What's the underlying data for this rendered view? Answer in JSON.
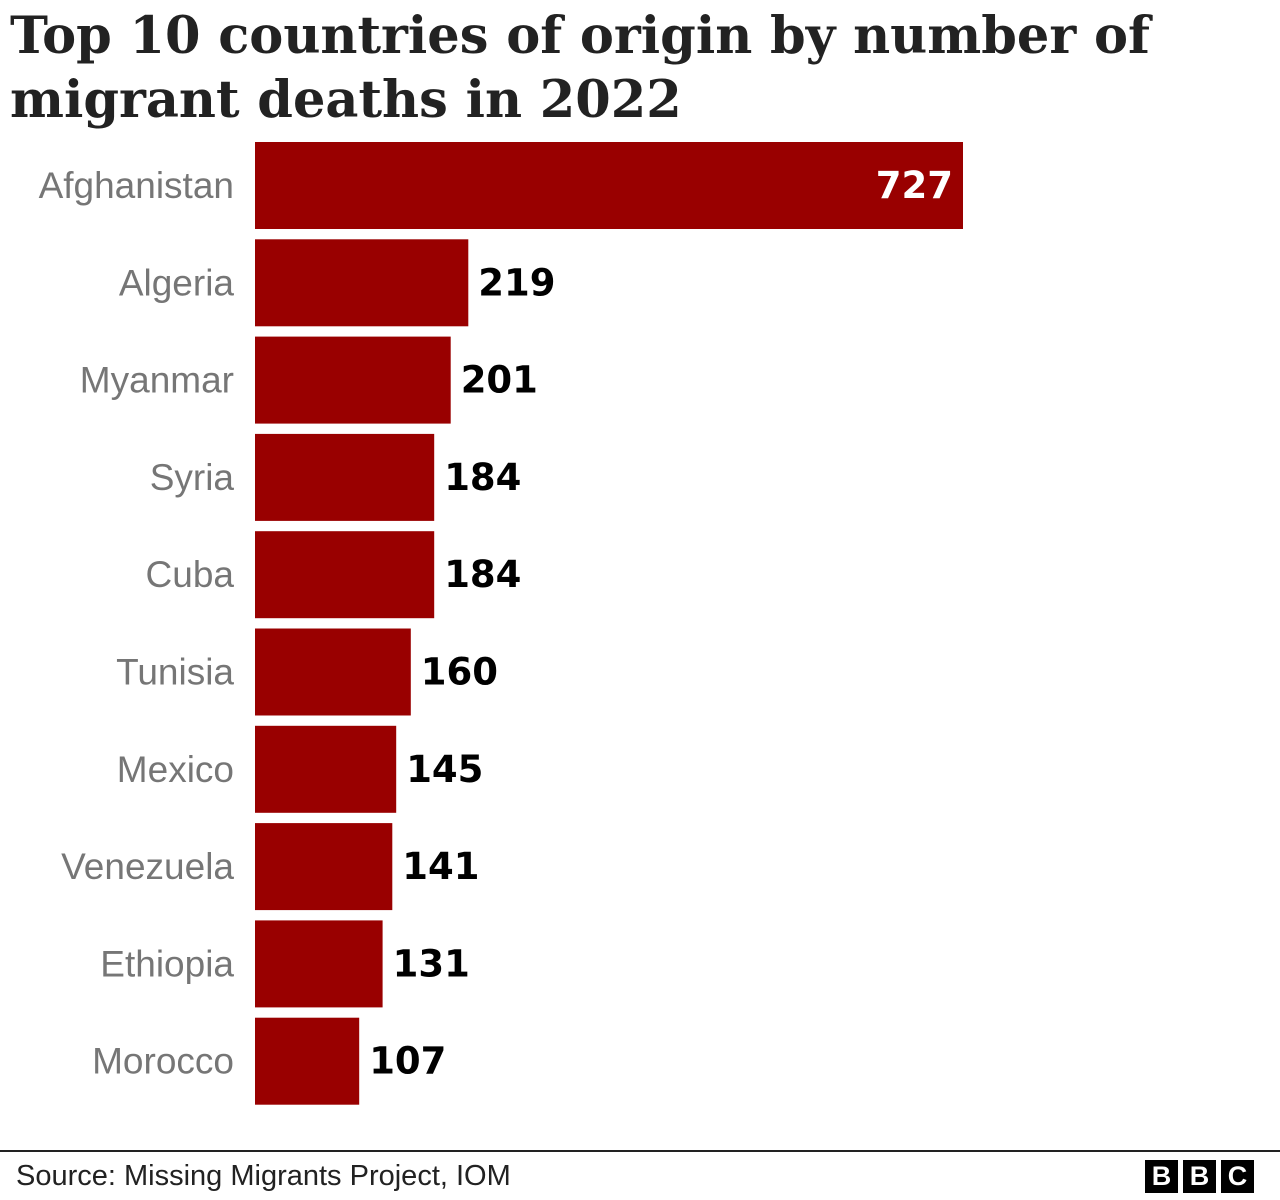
{
  "title": "Top 10 countries of origin by number of migrant deaths in 2022",
  "source": "Source: Missing Migrants Project, IOM",
  "logo": [
    "B",
    "B",
    "C"
  ],
  "colors": {
    "bar": "#990000",
    "category_label": "#767676",
    "value_label_outside": "#000000",
    "value_label_inside": "#ffffff"
  },
  "chart_data": {
    "type": "bar",
    "orientation": "horizontal",
    "title": "Top 10 countries of origin by number of migrant deaths in 2022",
    "categories": [
      "Afghanistan",
      "Algeria",
      "Myanmar",
      "Syria",
      "Cuba",
      "Tunisia",
      "Mexico",
      "Venezuela",
      "Ethiopia",
      "Morocco"
    ],
    "values": [
      727,
      219,
      201,
      184,
      184,
      160,
      145,
      141,
      131,
      107
    ],
    "value_labels": [
      "727",
      "219",
      "201",
      "184",
      "184",
      "160",
      "145",
      "141",
      "131",
      "107"
    ],
    "xlim": [
      0,
      727
    ],
    "grid": false,
    "legend": "none"
  }
}
